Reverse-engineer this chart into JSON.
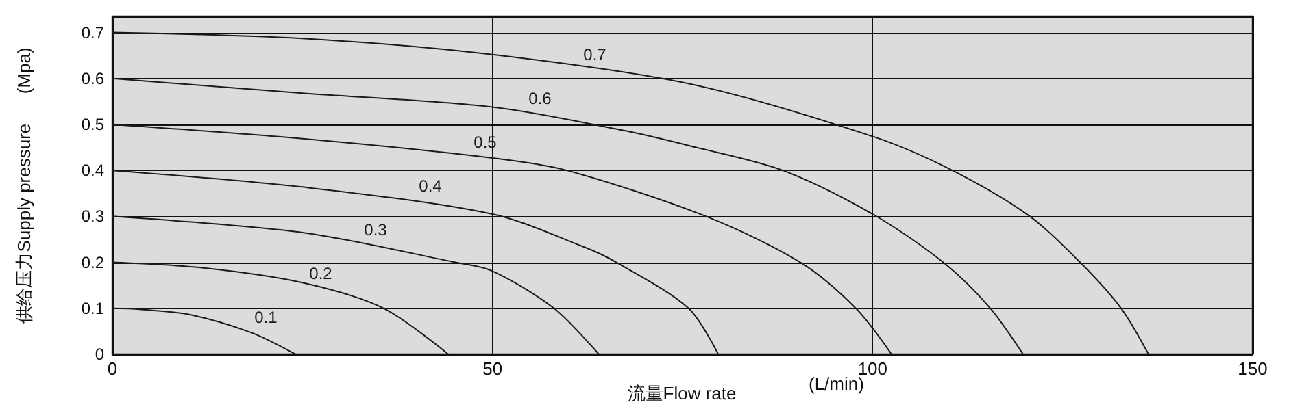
{
  "chart_data": {
    "type": "line",
    "xlabel": "流量Flow rate",
    "ylabel": "供给压力Supply pressure      (Mpa)",
    "xlim": [
      0,
      150
    ],
    "xticks": [
      0,
      50,
      100,
      150
    ],
    "ylim": [
      0,
      0.735
    ],
    "yticks": [
      0,
      0.1,
      0.2,
      0.3,
      0.4,
      0.5,
      0.6,
      0.7
    ],
    "grid": true,
    "marker": "none",
    "line_style": "solid",
    "series": [
      {
        "name": "0.1",
        "color": "#1a1a1a",
        "x": [
          0,
          3.6,
          10.3,
          18.3,
          24.1
        ],
        "values": [
          0.1,
          0.098,
          0.086,
          0.047,
          0
        ]
      },
      {
        "name": "0.2",
        "color": "#1a1a1a",
        "x": [
          0,
          12,
          25,
          35.7,
          44.2
        ],
        "values": [
          0.2,
          0.188,
          0.156,
          0.1,
          0
        ]
      },
      {
        "name": "0.3",
        "color": "#1a1a1a",
        "x": [
          0,
          25,
          45.1,
          50,
          58.1,
          64
        ],
        "values": [
          0.3,
          0.265,
          0.2,
          0.181,
          0.1,
          0
        ]
      },
      {
        "name": "0.4",
        "color": "#1a1a1a",
        "x": [
          0,
          25,
          50,
          61.8,
          66.3,
          75.8,
          79.7
        ],
        "values": [
          0.4,
          0.364,
          0.305,
          0.235,
          0.2,
          0.1,
          0
        ]
      },
      {
        "name": "0.5",
        "color": "#1a1a1a",
        "x": [
          0,
          25,
          50,
          59.8,
          78.1,
          90.5,
          97.8,
          102.5
        ],
        "values": [
          0.5,
          0.469,
          0.427,
          0.4,
          0.3,
          0.2,
          0.1,
          0
        ]
      },
      {
        "name": "0.6",
        "color": "#1a1a1a",
        "x": [
          0,
          25,
          50,
          67.5,
          76.3,
          88.2,
          100,
          109.3,
          115.5,
          119.8
        ],
        "values": [
          0.6,
          0.568,
          0.538,
          0.486,
          0.452,
          0.4,
          0.305,
          0.2,
          0.1,
          0
        ]
      },
      {
        "name": "0.7",
        "color": "#1a1a1a",
        "x": [
          0,
          25,
          50,
          76.3,
          100,
          110.5,
          120.7,
          127.3,
          132.7,
          136.3
        ],
        "values": [
          0.7,
          0.687,
          0.652,
          0.587,
          0.474,
          0.4,
          0.3,
          0.2,
          0.1,
          0
        ]
      }
    ],
    "annotations": [
      "(L/min)"
    ]
  }
}
